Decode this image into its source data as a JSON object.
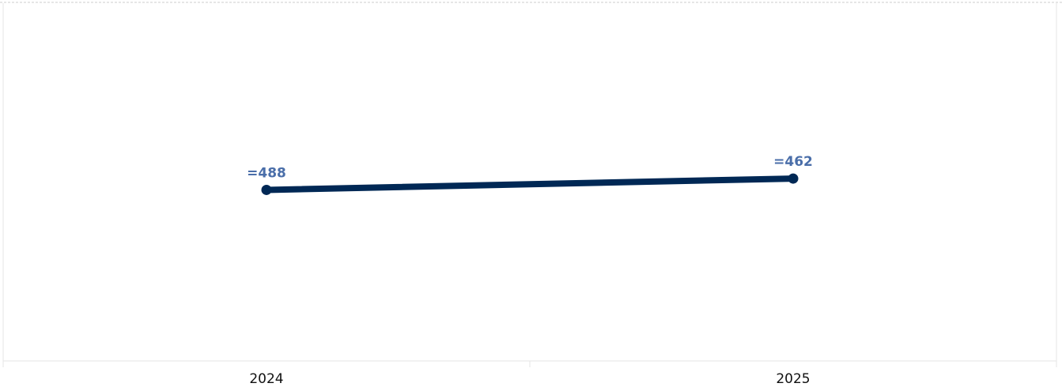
{
  "chart_data": {
    "type": "line",
    "categories": [
      "2024",
      "2025"
    ],
    "series": [
      {
        "values": [
          488,
          462
        ],
        "labels": [
          "=488",
          "=462"
        ]
      }
    ],
    "title": "",
    "xlabel": "",
    "ylabel": "",
    "ylim": [
      880,
      60
    ],
    "grid": true,
    "legend": "none",
    "colors": {
      "line": "#002855",
      "label": "#4a6ea9",
      "grid": "#e6e6e6",
      "top_border": "#cccccc"
    }
  }
}
